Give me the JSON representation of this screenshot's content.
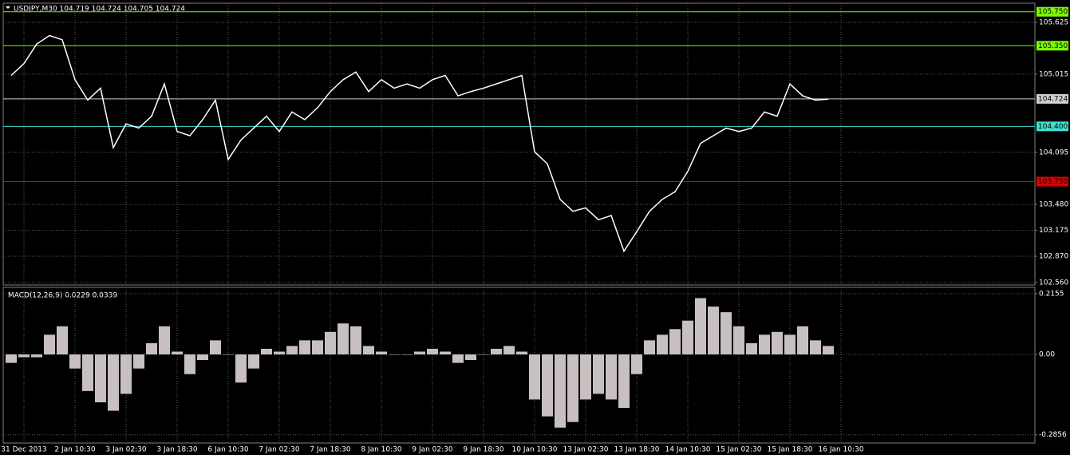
{
  "chart_data": [
    {
      "type": "line",
      "title": "USDJPY,M30 104.719 104.724 104.705 104.724",
      "color": "#ffffff",
      "values": [
        105.0,
        105.14,
        105.37,
        105.47,
        105.42,
        104.95,
        104.71,
        104.85,
        104.15,
        104.43,
        104.38,
        104.52,
        104.9,
        104.34,
        104.29,
        104.48,
        104.71,
        104.01,
        104.24,
        104.38,
        104.52,
        104.34,
        104.57,
        104.48,
        104.62,
        104.81,
        104.95,
        105.04,
        104.81,
        104.95,
        104.85,
        104.9,
        104.85,
        104.95,
        105.0,
        104.76,
        104.81,
        104.85,
        104.9,
        104.95,
        105.0,
        104.1,
        103.96,
        103.54,
        103.4,
        103.44,
        103.3,
        103.35,
        102.93,
        103.16,
        103.4,
        103.54,
        103.63,
        103.87,
        104.2,
        104.29,
        104.38,
        104.34,
        104.38,
        104.57,
        104.52,
        104.9,
        104.76,
        104.71,
        104.72,
        null
      ],
      "ylim": [
        102.532,
        105.851
      ],
      "yticks": [
        {
          "value": 105.625,
          "label": "105.625"
        },
        {
          "value": 105.015,
          "label": "105.015"
        },
        {
          "value": 104.095,
          "label": "104.095"
        },
        {
          "value": 103.48,
          "label": "103.480"
        },
        {
          "value": 103.175,
          "label": "103.175"
        },
        {
          "value": 102.87,
          "label": "102.870"
        },
        {
          "value": 102.56,
          "label": "102.560"
        }
      ],
      "levels": [
        {
          "value": 105.75,
          "label": "105.750",
          "color": "#7cfc00"
        },
        {
          "value": 105.35,
          "label": "105.350",
          "color": "#7cfc00"
        },
        {
          "value": 104.724,
          "label": "104.724",
          "color": "#d0d0d0"
        },
        {
          "value": 104.4,
          "label": "104.400",
          "color": "#40e0d0"
        },
        {
          "value": 103.75,
          "label": "103.750",
          "color": "#e00000"
        }
      ],
      "grid": true
    },
    {
      "type": "bar",
      "title": "MACD(12,26,9) 0.0229 0.0339",
      "color": "#c8c0c0",
      "categories": [
        null,
        "31 Dec 2013",
        null,
        null,
        null,
        "2 Jan 10:30",
        null,
        null,
        null,
        "3 Jan 02:30",
        null,
        null,
        null,
        "3 Jan 18:30",
        null,
        null,
        null,
        "6 Jan 10:30",
        null,
        null,
        null,
        "7 Jan 02:30",
        null,
        null,
        null,
        "7 Jan 18:30",
        null,
        null,
        null,
        "8 Jan 10:30",
        null,
        null,
        null,
        "9 Jan 02:30",
        null,
        null,
        null,
        "9 Jan 18:30",
        null,
        null,
        null,
        "10 Jan 10:30",
        null,
        null,
        null,
        "13 Jan 02:30",
        null,
        null,
        null,
        "13 Jan 18:30",
        null,
        null,
        null,
        "14 Jan 10:30",
        null,
        null,
        null,
        "15 Jan 02:30",
        null,
        null,
        null,
        "15 Jan 18:30",
        null,
        null,
        null,
        "16 Jan 10:30"
      ],
      "values": [
        -0.03,
        -0.01,
        -0.01,
        0.07,
        0.1,
        -0.05,
        -0.13,
        -0.17,
        -0.2,
        -0.14,
        -0.05,
        0.04,
        0.1,
        0.01,
        -0.07,
        -0.02,
        0.05,
        0.0,
        -0.1,
        -0.05,
        0.02,
        0.01,
        0.03,
        0.05,
        0.05,
        0.08,
        0.11,
        0.1,
        0.03,
        0.01,
        0.0,
        0.0,
        0.01,
        0.02,
        0.01,
        -0.03,
        -0.02,
        0.0,
        0.02,
        0.03,
        0.01,
        -0.16,
        -0.22,
        -0.26,
        -0.24,
        -0.16,
        -0.14,
        -0.16,
        -0.19,
        -0.07,
        0.05,
        0.07,
        0.09,
        0.12,
        0.2,
        0.17,
        0.15,
        0.1,
        0.04,
        0.07,
        0.08,
        0.07,
        0.1,
        0.05,
        0.03,
        null
      ],
      "ylim": [
        -0.3147,
        0.2382
      ],
      "yticks": [
        0.2155,
        {
          "value": 0,
          "label": "0.00"
        },
        -0.2856
      ],
      "grid": true
    }
  ]
}
